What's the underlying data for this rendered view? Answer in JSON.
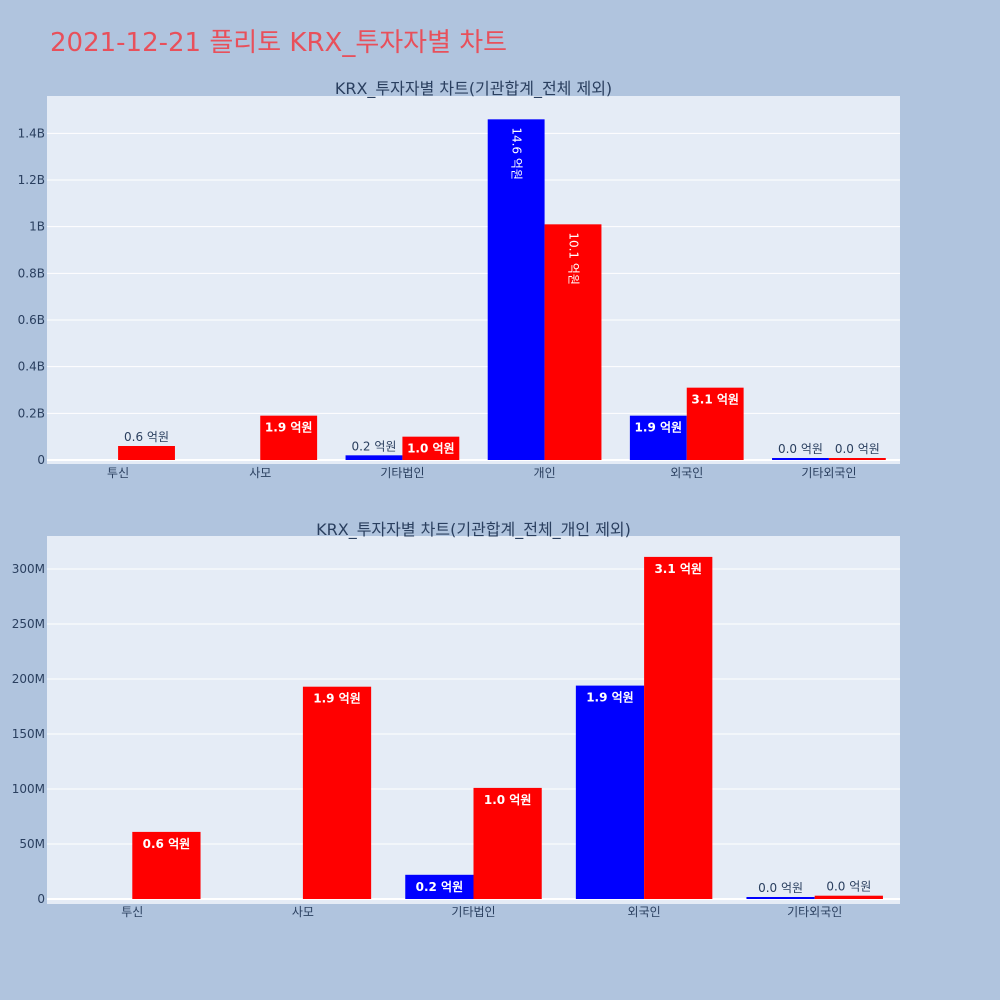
{
  "page_title": "2021-12-21 플리토 KRX_투자자별 차트",
  "colors": {
    "series_a": "#0000ff",
    "series_b": "#ff0000",
    "plot_bg": "#e5ecf6",
    "page_bg": "#b0c4de",
    "title": "#e8505b"
  },
  "chart_data": [
    {
      "type": "bar",
      "title": "KRX_투자자별 차트(기관합계_전체 제외)",
      "categories": [
        "투신",
        "사모",
        "기타법인",
        "개인",
        "외국인",
        "기타외국인"
      ],
      "series": [
        {
          "values": [
            0,
            0,
            20000000,
            1460000000,
            190000000,
            500000
          ],
          "labels": [
            "",
            "",
            "0.2 억원",
            "14.6 억원",
            "1.9 억원",
            "0.0 억원"
          ]
        },
        {
          "values": [
            60000000,
            190000000,
            100000000,
            1010000000,
            310000000,
            500000
          ],
          "labels": [
            "0.6 억원",
            "1.9 억원",
            "1.0 억원",
            "10.1 억원",
            "3.1 억원",
            "0.0 억원"
          ]
        }
      ],
      "yticks": [
        "0",
        "0.2B",
        "0.4B",
        "0.6B",
        "0.8B",
        "1B",
        "1.2B",
        "1.4B"
      ],
      "ylim": [
        0,
        1560000000
      ],
      "grid": true
    },
    {
      "type": "bar",
      "title": "KRX_투자자별 차트(기관합계_전체_개인 제외)",
      "categories": [
        "투신",
        "사모",
        "기타법인",
        "외국인",
        "기타외국인"
      ],
      "series": [
        {
          "values": [
            0,
            0,
            22000000,
            194000000,
            1500000
          ],
          "labels": [
            "",
            "",
            "0.2 억원",
            "1.9 억원",
            "0.0 억원"
          ]
        },
        {
          "values": [
            61000000,
            193000000,
            101000000,
            311000000,
            3000000
          ],
          "labels": [
            "0.6 억원",
            "1.9 억원",
            "1.0 억원",
            "3.1 억원",
            "0.0 억원"
          ]
        }
      ],
      "yticks": [
        "0",
        "50M",
        "100M",
        "150M",
        "200M",
        "250M",
        "300M"
      ],
      "ylim": [
        0,
        330000000
      ],
      "grid": true
    }
  ]
}
